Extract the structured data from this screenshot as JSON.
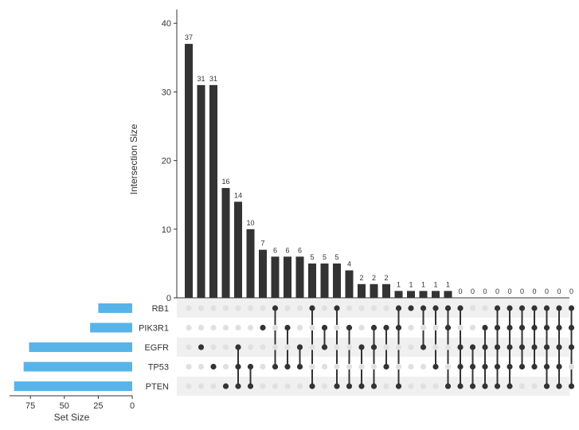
{
  "chart_data": {
    "type": "upset",
    "title": "",
    "ylabel": "Intersection Size",
    "ylim": [
      0,
      42
    ],
    "yticks": [
      0,
      10,
      20,
      30,
      40
    ],
    "set_size_label": "Set Size",
    "set_size_lim": [
      0,
      88
    ],
    "set_size_ticks": [
      75,
      50,
      25,
      0
    ],
    "sets": [
      {
        "name": "RB1",
        "size": 25
      },
      {
        "name": "PIK3R1",
        "size": 31
      },
      {
        "name": "EGFR",
        "size": 76
      },
      {
        "name": "TP53",
        "size": 80
      },
      {
        "name": "PTEN",
        "size": 87
      }
    ],
    "intersections": [
      {
        "value": 37,
        "label": "37",
        "sets": []
      },
      {
        "value": 31,
        "label": "31",
        "sets": [
          "EGFR"
        ]
      },
      {
        "value": 31,
        "label": "31",
        "sets": [
          "TP53"
        ]
      },
      {
        "value": 16,
        "label": "16",
        "sets": [
          "PTEN"
        ]
      },
      {
        "value": 14,
        "label": "14",
        "sets": [
          "EGFR",
          "TP53",
          "PTEN"
        ]
      },
      {
        "value": 10,
        "label": "10",
        "sets": [
          "TP53",
          "PTEN"
        ]
      },
      {
        "value": 7,
        "label": "7",
        "sets": [
          "PIK3R1"
        ]
      },
      {
        "value": 6,
        "label": "6",
        "sets": [
          "RB1",
          "TP53"
        ]
      },
      {
        "value": 6,
        "label": "6",
        "sets": [
          "PIK3R1",
          "TP53"
        ]
      },
      {
        "value": 6,
        "label": "6",
        "sets": [
          "EGFR",
          "TP53"
        ]
      },
      {
        "value": 5,
        "label": "5",
        "sets": [
          "RB1",
          "PTEN"
        ]
      },
      {
        "value": 5,
        "label": "5",
        "sets": [
          "PIK3R1",
          "EGFR"
        ]
      },
      {
        "value": 5,
        "label": "5",
        "sets": [
          "RB1",
          "PTEN"
        ]
      },
      {
        "value": 4,
        "label": "4",
        "sets": [
          "PIK3R1",
          "PTEN"
        ]
      },
      {
        "value": 2,
        "label": "2",
        "sets": [
          "EGFR",
          "PTEN"
        ]
      },
      {
        "value": 2,
        "label": "2",
        "sets": [
          "PIK3R1",
          "EGFR",
          "PTEN"
        ]
      },
      {
        "value": 2,
        "label": "2",
        "sets": [
          "PIK3R1",
          "TP53"
        ]
      },
      {
        "value": 1,
        "label": "1",
        "sets": [
          "RB1",
          "PIK3R1",
          "PTEN"
        ]
      },
      {
        "value": 1,
        "label": "1",
        "sets": [
          "RB1"
        ]
      },
      {
        "value": 1,
        "label": "1",
        "sets": [
          "RB1",
          "EGFR"
        ]
      },
      {
        "value": 1,
        "label": "1",
        "sets": [
          "RB1",
          "TP53"
        ]
      },
      {
        "value": 1,
        "label": "1",
        "sets": [
          "RB1",
          "PIK3R1",
          "PTEN"
        ]
      },
      {
        "value": 0,
        "label": "0",
        "sets": [
          "RB1",
          "EGFR",
          "TP53",
          "PTEN"
        ]
      },
      {
        "value": 0,
        "label": "0",
        "sets": [
          "EGFR",
          "TP53",
          "PTEN"
        ]
      },
      {
        "value": 0,
        "label": "0",
        "sets": [
          "PIK3R1",
          "EGFR",
          "TP53",
          "PTEN"
        ]
      },
      {
        "value": 0,
        "label": "0",
        "sets": [
          "RB1",
          "PIK3R1",
          "EGFR",
          "TP53",
          "PTEN"
        ]
      },
      {
        "value": 0,
        "label": "0",
        "sets": [
          "RB1",
          "PIK3R1",
          "EGFR",
          "TP53",
          "PTEN"
        ]
      },
      {
        "value": 0,
        "label": "0",
        "sets": [
          "RB1",
          "PIK3R1",
          "EGFR",
          "TP53"
        ]
      },
      {
        "value": 0,
        "label": "0",
        "sets": [
          "RB1",
          "PIK3R1",
          "EGFR",
          "TP53"
        ]
      },
      {
        "value": 0,
        "label": "0",
        "sets": [
          "RB1",
          "PIK3R1",
          "EGFR",
          "TP53",
          "PTEN"
        ]
      },
      {
        "value": 0,
        "label": "0",
        "sets": [
          "RB1",
          "PIK3R1",
          "EGFR",
          "TP53",
          "PTEN"
        ]
      },
      {
        "value": 0,
        "label": "0",
        "sets": [
          "RB1",
          "PIK3R1",
          "EGFR",
          "PTEN"
        ]
      }
    ],
    "colors": {
      "bar": "#333333",
      "set_bar": "#56b4e9",
      "dot_on": "#333333",
      "dot_off": "#e0e0e0",
      "stripe": "#f0f0f0",
      "axis": "#333333",
      "text": "#333333"
    }
  }
}
